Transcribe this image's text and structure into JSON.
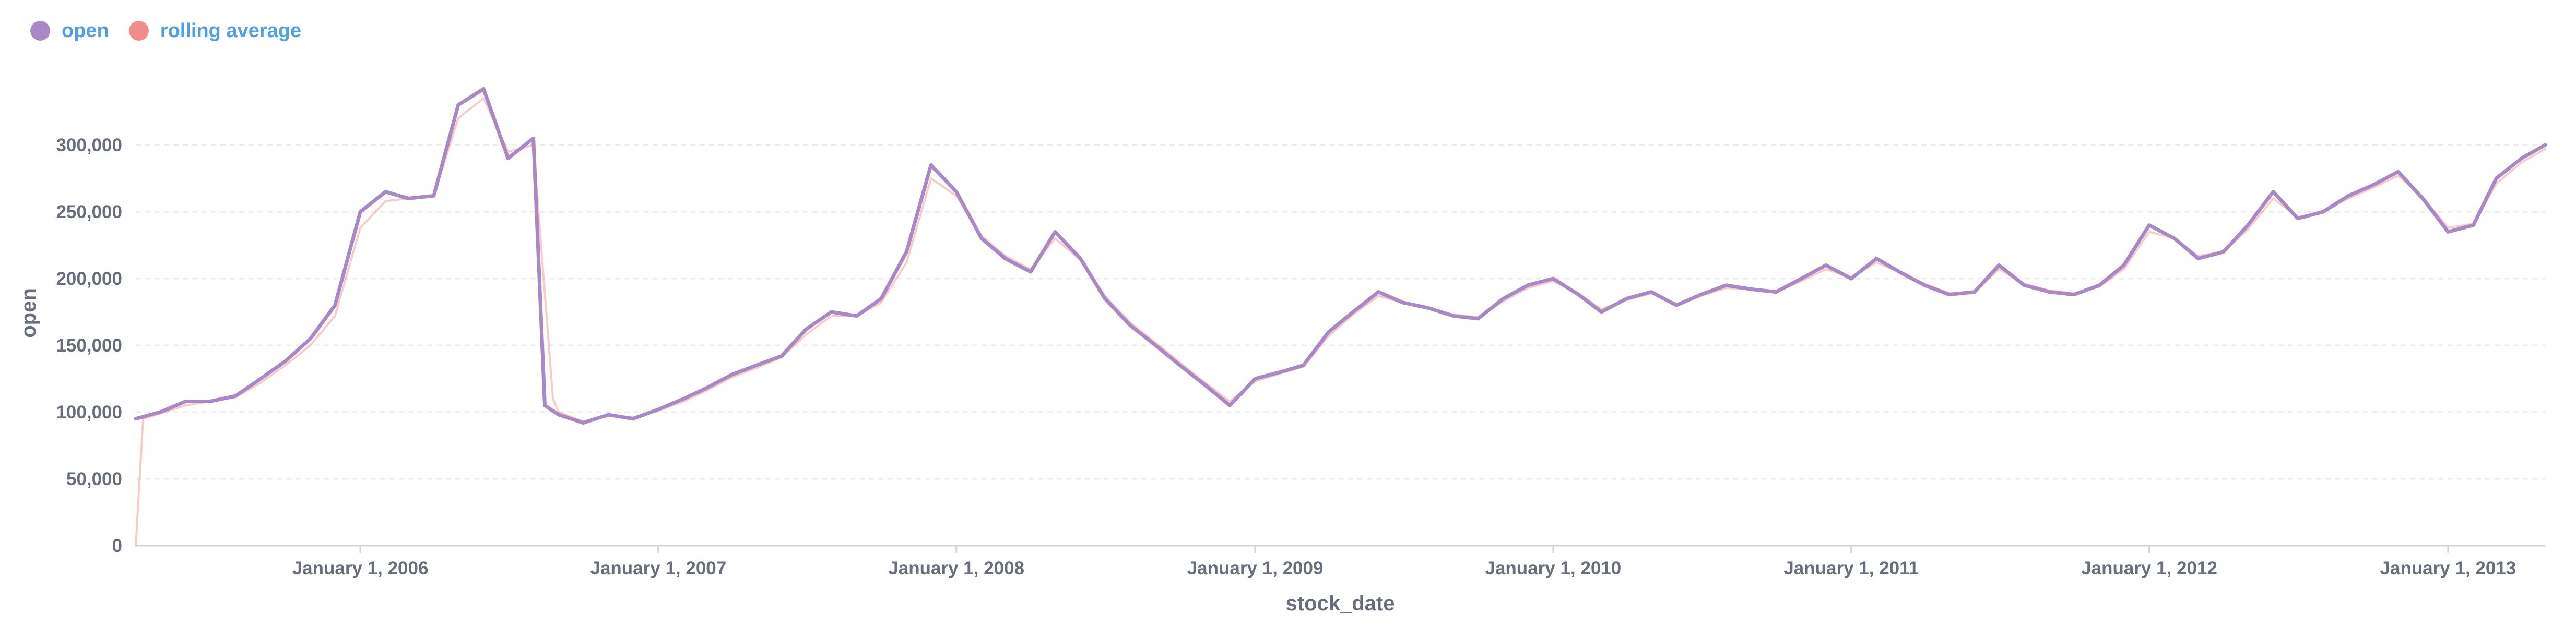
{
  "legend": {
    "items": [
      {
        "label": "open",
        "color": "#a989c5"
      },
      {
        "label": "rolling average",
        "color": "#ef8c8c"
      }
    ]
  },
  "chart_data": {
    "type": "line",
    "xlabel": "stock_date",
    "ylabel": "open",
    "x_range": [
      "2005-04-01",
      "2013-04-30"
    ],
    "ylim": [
      0,
      350000
    ],
    "y_ticks": [
      0,
      50000,
      100000,
      150000,
      200000,
      250000,
      300000
    ],
    "y_tick_labels": [
      "0",
      "50,000",
      "100,000",
      "150,000",
      "200,000",
      "250,000",
      "300,000"
    ],
    "x_ticks": [
      "2006-01-01",
      "2007-01-01",
      "2008-01-01",
      "2009-01-01",
      "2010-01-01",
      "2011-01-01",
      "2012-01-01",
      "2013-01-01"
    ],
    "x_tick_labels": [
      "January 1, 2006",
      "January 1, 2007",
      "January 1, 2008",
      "January 1, 2009",
      "January 1, 2010",
      "January 1, 2011",
      "January 1, 2012",
      "January 1, 2013"
    ],
    "grid": {
      "horizontal": true,
      "style": "dashed"
    },
    "legend_position": "top-left",
    "series": [
      {
        "name": "open",
        "color": "#a989c5",
        "points": [
          [
            "2005-04-01",
            95000
          ],
          [
            "2005-05-01",
            100000
          ],
          [
            "2005-06-01",
            108000
          ],
          [
            "2005-07-01",
            108000
          ],
          [
            "2005-08-01",
            112000
          ],
          [
            "2005-09-01",
            125000
          ],
          [
            "2005-10-01",
            138000
          ],
          [
            "2005-11-01",
            155000
          ],
          [
            "2005-12-01",
            180000
          ],
          [
            "2006-01-01",
            250000
          ],
          [
            "2006-02-01",
            265000
          ],
          [
            "2006-03-01",
            260000
          ],
          [
            "2006-04-01",
            262000
          ],
          [
            "2006-05-01",
            330000
          ],
          [
            "2006-06-01",
            342000
          ],
          [
            "2006-07-01",
            290000
          ],
          [
            "2006-08-01",
            305000
          ],
          [
            "2006-08-15",
            105000
          ],
          [
            "2006-09-01",
            98000
          ],
          [
            "2006-10-01",
            92000
          ],
          [
            "2006-11-01",
            98000
          ],
          [
            "2006-12-01",
            95000
          ],
          [
            "2007-01-01",
            102000
          ],
          [
            "2007-02-01",
            110000
          ],
          [
            "2007-03-01",
            118000
          ],
          [
            "2007-04-01",
            128000
          ],
          [
            "2007-05-01",
            135000
          ],
          [
            "2007-06-01",
            142000
          ],
          [
            "2007-07-01",
            162000
          ],
          [
            "2007-08-01",
            175000
          ],
          [
            "2007-09-01",
            172000
          ],
          [
            "2007-10-01",
            185000
          ],
          [
            "2007-11-01",
            220000
          ],
          [
            "2007-12-01",
            285000
          ],
          [
            "2008-01-01",
            265000
          ],
          [
            "2008-02-01",
            230000
          ],
          [
            "2008-03-01",
            215000
          ],
          [
            "2008-04-01",
            205000
          ],
          [
            "2008-05-01",
            235000
          ],
          [
            "2008-06-01",
            215000
          ],
          [
            "2008-07-01",
            185000
          ],
          [
            "2008-08-01",
            165000
          ],
          [
            "2008-09-01",
            150000
          ],
          [
            "2008-10-01",
            135000
          ],
          [
            "2008-11-01",
            120000
          ],
          [
            "2008-12-01",
            105000
          ],
          [
            "2009-01-01",
            125000
          ],
          [
            "2009-02-01",
            130000
          ],
          [
            "2009-03-01",
            135000
          ],
          [
            "2009-04-01",
            160000
          ],
          [
            "2009-05-01",
            175000
          ],
          [
            "2009-06-01",
            190000
          ],
          [
            "2009-07-01",
            182000
          ],
          [
            "2009-08-01",
            178000
          ],
          [
            "2009-09-01",
            172000
          ],
          [
            "2009-10-01",
            170000
          ],
          [
            "2009-11-01",
            185000
          ],
          [
            "2009-12-01",
            195000
          ],
          [
            "2010-01-01",
            200000
          ],
          [
            "2010-02-01",
            188000
          ],
          [
            "2010-03-01",
            175000
          ],
          [
            "2010-04-01",
            185000
          ],
          [
            "2010-05-01",
            190000
          ],
          [
            "2010-06-01",
            180000
          ],
          [
            "2010-07-01",
            188000
          ],
          [
            "2010-08-01",
            195000
          ],
          [
            "2010-09-01",
            192000
          ],
          [
            "2010-10-01",
            190000
          ],
          [
            "2010-11-01",
            200000
          ],
          [
            "2010-12-01",
            210000
          ],
          [
            "2011-01-01",
            200000
          ],
          [
            "2011-02-01",
            215000
          ],
          [
            "2011-03-01",
            205000
          ],
          [
            "2011-04-01",
            195000
          ],
          [
            "2011-05-01",
            188000
          ],
          [
            "2011-06-01",
            190000
          ],
          [
            "2011-07-01",
            210000
          ],
          [
            "2011-08-01",
            195000
          ],
          [
            "2011-09-01",
            190000
          ],
          [
            "2011-10-01",
            188000
          ],
          [
            "2011-11-01",
            195000
          ],
          [
            "2011-12-01",
            210000
          ],
          [
            "2012-01-01",
            240000
          ],
          [
            "2012-02-01",
            230000
          ],
          [
            "2012-03-01",
            215000
          ],
          [
            "2012-04-01",
            220000
          ],
          [
            "2012-05-01",
            240000
          ],
          [
            "2012-06-01",
            265000
          ],
          [
            "2012-07-01",
            245000
          ],
          [
            "2012-08-01",
            250000
          ],
          [
            "2012-09-01",
            262000
          ],
          [
            "2012-10-01",
            270000
          ],
          [
            "2012-11-01",
            280000
          ],
          [
            "2012-12-01",
            260000
          ],
          [
            "2013-01-01",
            235000
          ],
          [
            "2013-02-01",
            240000
          ],
          [
            "2013-03-01",
            275000
          ],
          [
            "2013-04-01",
            290000
          ],
          [
            "2013-04-30",
            300000
          ]
        ]
      },
      {
        "name": "rolling average",
        "color": "#ef8c8c",
        "points": [
          [
            "2005-04-01",
            0
          ],
          [
            "2005-04-10",
            95000
          ],
          [
            "2005-05-01",
            99000
          ],
          [
            "2005-06-01",
            105000
          ],
          [
            "2005-07-01",
            108000
          ],
          [
            "2005-08-01",
            111000
          ],
          [
            "2005-09-01",
            122000
          ],
          [
            "2005-10-01",
            135000
          ],
          [
            "2005-11-01",
            150000
          ],
          [
            "2005-12-01",
            172000
          ],
          [
            "2006-01-01",
            238000
          ],
          [
            "2006-02-01",
            258000
          ],
          [
            "2006-03-01",
            260000
          ],
          [
            "2006-04-01",
            262000
          ],
          [
            "2006-05-01",
            320000
          ],
          [
            "2006-06-01",
            335000
          ],
          [
            "2006-07-01",
            295000
          ],
          [
            "2006-08-01",
            300000
          ],
          [
            "2006-08-25",
            110000
          ],
          [
            "2006-09-01",
            100000
          ],
          [
            "2006-10-01",
            93000
          ],
          [
            "2006-11-01",
            97000
          ],
          [
            "2006-12-01",
            96000
          ],
          [
            "2007-01-01",
            101000
          ],
          [
            "2007-02-01",
            108000
          ],
          [
            "2007-03-01",
            116000
          ],
          [
            "2007-04-01",
            126000
          ],
          [
            "2007-05-01",
            133000
          ],
          [
            "2007-06-01",
            141000
          ],
          [
            "2007-07-01",
            158000
          ],
          [
            "2007-08-01",
            172000
          ],
          [
            "2007-09-01",
            172000
          ],
          [
            "2007-10-01",
            182000
          ],
          [
            "2007-11-01",
            212000
          ],
          [
            "2007-12-01",
            275000
          ],
          [
            "2008-01-01",
            262000
          ],
          [
            "2008-02-01",
            232000
          ],
          [
            "2008-03-01",
            217000
          ],
          [
            "2008-04-01",
            207000
          ],
          [
            "2008-05-01",
            230000
          ],
          [
            "2008-06-01",
            214000
          ],
          [
            "2008-07-01",
            187000
          ],
          [
            "2008-08-01",
            167000
          ],
          [
            "2008-09-01",
            152000
          ],
          [
            "2008-10-01",
            137000
          ],
          [
            "2008-11-01",
            122000
          ],
          [
            "2008-12-01",
            108000
          ],
          [
            "2009-01-01",
            123000
          ],
          [
            "2009-02-01",
            129000
          ],
          [
            "2009-03-01",
            134000
          ],
          [
            "2009-04-01",
            157000
          ],
          [
            "2009-05-01",
            173000
          ],
          [
            "2009-06-01",
            187000
          ],
          [
            "2009-07-01",
            182000
          ],
          [
            "2009-08-01",
            178000
          ],
          [
            "2009-09-01",
            173000
          ],
          [
            "2009-10-01",
            171000
          ],
          [
            "2009-11-01",
            183000
          ],
          [
            "2009-12-01",
            193000
          ],
          [
            "2010-01-01",
            198000
          ],
          [
            "2010-02-01",
            189000
          ],
          [
            "2010-03-01",
            177000
          ],
          [
            "2010-04-01",
            184000
          ],
          [
            "2010-05-01",
            189000
          ],
          [
            "2010-06-01",
            181000
          ],
          [
            "2010-07-01",
            187000
          ],
          [
            "2010-08-01",
            193000
          ],
          [
            "2010-09-01",
            192000
          ],
          [
            "2010-10-01",
            190000
          ],
          [
            "2010-11-01",
            198000
          ],
          [
            "2010-12-01",
            207000
          ],
          [
            "2011-01-01",
            201000
          ],
          [
            "2011-02-01",
            212000
          ],
          [
            "2011-03-01",
            205000
          ],
          [
            "2011-04-01",
            196000
          ],
          [
            "2011-05-01",
            189000
          ],
          [
            "2011-06-01",
            190000
          ],
          [
            "2011-07-01",
            207000
          ],
          [
            "2011-08-01",
            196000
          ],
          [
            "2011-09-01",
            191000
          ],
          [
            "2011-10-01",
            189000
          ],
          [
            "2011-11-01",
            194000
          ],
          [
            "2011-12-01",
            207000
          ],
          [
            "2012-01-01",
            235000
          ],
          [
            "2012-02-01",
            230000
          ],
          [
            "2012-03-01",
            217000
          ],
          [
            "2012-04-01",
            220000
          ],
          [
            "2012-05-01",
            237000
          ],
          [
            "2012-06-01",
            260000
          ],
          [
            "2012-07-01",
            246000
          ],
          [
            "2012-08-01",
            250000
          ],
          [
            "2012-09-01",
            260000
          ],
          [
            "2012-10-01",
            268000
          ],
          [
            "2012-11-01",
            277000
          ],
          [
            "2012-12-01",
            261000
          ],
          [
            "2013-01-01",
            238000
          ],
          [
            "2013-02-01",
            241000
          ],
          [
            "2013-03-01",
            271000
          ],
          [
            "2013-04-01",
            287000
          ],
          [
            "2013-04-30",
            297000
          ]
        ]
      }
    ]
  }
}
